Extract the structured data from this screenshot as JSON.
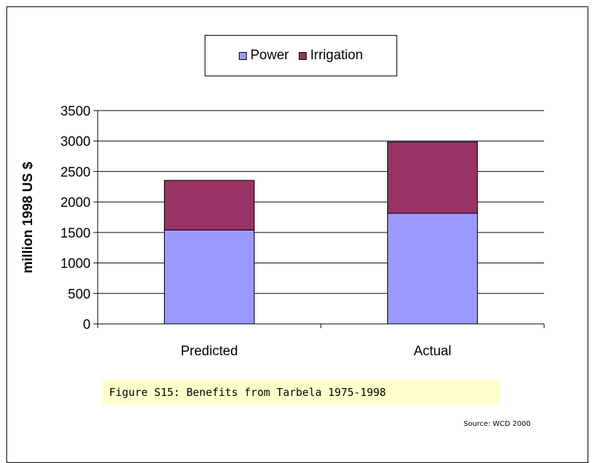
{
  "chart_data": {
    "type": "bar",
    "stacked": true,
    "categories": [
      "Predicted",
      "Actual"
    ],
    "series": [
      {
        "name": "Power",
        "values": [
          1540,
          1815
        ],
        "color": "#9999ff"
      },
      {
        "name": "Irrigation",
        "values": [
          815,
          1170
        ],
        "color": "#993366"
      }
    ],
    "ylabel": "million 1998 US $",
    "ylim": [
      0,
      3500
    ],
    "yticks": [
      "0",
      "500",
      "1000",
      "1500",
      "2000",
      "2500",
      "3000",
      "3500"
    ],
    "grid": true,
    "legend_position": "top"
  },
  "caption": "Figure S15: Benefits from Tarbela 1975-1998",
  "source": "Source: WCD 2000"
}
